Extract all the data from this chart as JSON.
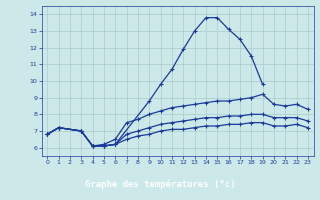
{
  "xlabel": "Graphe des températures (°c)",
  "bg_color": "#cce8e8",
  "grid_color": "#aacccc",
  "line_color": "#1a3a9a",
  "label_bg": "#1a3a9a",
  "label_fg": "#ffffff",
  "xlim": [
    -0.5,
    23.5
  ],
  "ylim": [
    5.5,
    14.5
  ],
  "xticks": [
    0,
    1,
    2,
    3,
    4,
    5,
    6,
    7,
    8,
    9,
    10,
    11,
    12,
    13,
    14,
    15,
    16,
    17,
    18,
    19,
    20,
    21,
    22,
    23
  ],
  "yticks": [
    6,
    7,
    8,
    9,
    10,
    11,
    12,
    13,
    14
  ],
  "line1_x": [
    0,
    1,
    3,
    4,
    5,
    6,
    9,
    10,
    11,
    12,
    13,
    14,
    15,
    16,
    17,
    18,
    19
  ],
  "line1_y": [
    6.8,
    7.2,
    7.0,
    6.1,
    6.1,
    6.2,
    8.8,
    9.8,
    10.7,
    11.9,
    13.0,
    13.8,
    13.8,
    13.1,
    12.5,
    11.5,
    9.8
  ],
  "line2_x": [
    0,
    1,
    3,
    4,
    5,
    6,
    7,
    8,
    9,
    10,
    11,
    12,
    13,
    14,
    15,
    16,
    17,
    18,
    19,
    20,
    21,
    22,
    23
  ],
  "line2_y": [
    6.8,
    7.2,
    7.0,
    6.1,
    6.2,
    6.5,
    7.5,
    7.7,
    8.0,
    8.2,
    8.4,
    8.5,
    8.6,
    8.7,
    8.8,
    8.8,
    8.9,
    9.0,
    9.2,
    8.6,
    8.5,
    8.6,
    8.3
  ],
  "line3_x": [
    0,
    1,
    3,
    4,
    5,
    6,
    7,
    8,
    9,
    10,
    11,
    12,
    13,
    14,
    15,
    16,
    17,
    18,
    19,
    20,
    21,
    22,
    23
  ],
  "line3_y": [
    6.8,
    7.2,
    7.0,
    6.1,
    6.1,
    6.2,
    6.8,
    7.0,
    7.2,
    7.4,
    7.5,
    7.6,
    7.7,
    7.8,
    7.8,
    7.9,
    7.9,
    8.0,
    8.0,
    7.8,
    7.8,
    7.8,
    7.6
  ],
  "line4_x": [
    0,
    1,
    3,
    4,
    5,
    6,
    7,
    8,
    9,
    10,
    11,
    12,
    13,
    14,
    15,
    16,
    17,
    18,
    19,
    20,
    21,
    22,
    23
  ],
  "line4_y": [
    6.8,
    7.2,
    7.0,
    6.1,
    6.1,
    6.2,
    6.5,
    6.7,
    6.8,
    7.0,
    7.1,
    7.1,
    7.2,
    7.3,
    7.3,
    7.4,
    7.4,
    7.5,
    7.5,
    7.3,
    7.3,
    7.4,
    7.2
  ]
}
